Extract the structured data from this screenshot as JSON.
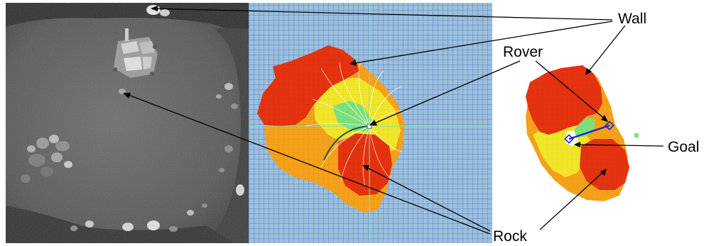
{
  "labels": {
    "wall": "Wall",
    "rover": "Rover",
    "goal": "Goal",
    "rock": "Rock"
  },
  "colors": {
    "high_cost": "#e53212",
    "mid_cost": "#f6a31a",
    "low_cost": "#f2e82a",
    "free": "#7ee07e",
    "grid_bg": "#9cc0dc",
    "grid_line": "#3e5fb8",
    "path": "#2222cc"
  },
  "panels": [
    {
      "name": "overhead-photo"
    },
    {
      "name": "terrain-cost-map"
    },
    {
      "name": "local-planner-map"
    }
  ]
}
